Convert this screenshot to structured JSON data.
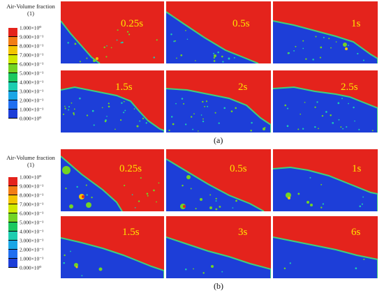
{
  "legend": {
    "title": "Air-Volume fraction",
    "unit": "(1)",
    "ticks": [
      "1.000×10⁰",
      "9.000×10⁻¹",
      "8.000×10⁻¹",
      "7.000×10⁻¹",
      "6.000×10⁻¹",
      "5.000×10⁻¹",
      "4.000×10⁻¹",
      "3.000×10⁻¹",
      "2.000×10⁻¹",
      "1.000×10⁻¹",
      "0.000×10⁰"
    ],
    "colors": [
      "#e4231c",
      "#f27d14",
      "#f3c400",
      "#cfe800",
      "#72d424",
      "#1cc860",
      "#1dcdb0",
      "#1aa6e6",
      "#1f6ef0",
      "#1d3ed8"
    ]
  },
  "colors": {
    "air": "#e4231c",
    "water": "#1d3ed8",
    "interface": "#3fd07c",
    "label": "#ffe600"
  },
  "figure_a": {
    "caption": "(a)",
    "panels": [
      {
        "time": "0.25s"
      },
      {
        "time": "0.5s"
      },
      {
        "time": "1s"
      },
      {
        "time": "1.5s"
      },
      {
        "time": "2s"
      },
      {
        "time": "2.5s"
      }
    ]
  },
  "figure_b": {
    "caption": "(b)",
    "panels": [
      {
        "time": "0.25s"
      },
      {
        "time": "0.5s"
      },
      {
        "time": "1s"
      },
      {
        "time": "1.5s"
      },
      {
        "time": "3s"
      },
      {
        "time": "6s"
      }
    ]
  }
}
